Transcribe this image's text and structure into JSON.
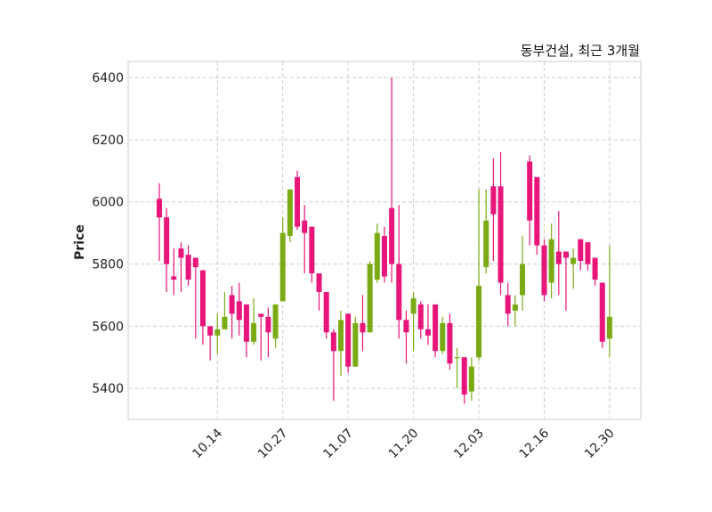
{
  "chart_data": {
    "type": "candlestick",
    "title": "동부건설, 최근 3개월",
    "ylabel": "Price",
    "xlabel": "",
    "ylim": [
      5300,
      6452
    ],
    "yticks": [
      5400,
      5600,
      5800,
      6000,
      6200,
      6400
    ],
    "grid": true,
    "colors": {
      "up": "#7bab14",
      "down": "#e8157a",
      "grid": "#cccccc",
      "frame": "#dddddd"
    },
    "xtick_labels": [
      {
        "index": 8,
        "label": "10.14"
      },
      {
        "index": 17,
        "label": "10.27"
      },
      {
        "index": 26,
        "label": "11.07"
      },
      {
        "index": 35,
        "label": "11.20"
      },
      {
        "index": 44,
        "label": "12.03"
      },
      {
        "index": 53,
        "label": "12.16"
      },
      {
        "index": 62,
        "label": "12.30"
      }
    ],
    "ohlc": [
      [
        6010,
        6060,
        5810,
        5950
      ],
      [
        5950,
        5980,
        5710,
        5800
      ],
      [
        5760,
        5850,
        5700,
        5750
      ],
      [
        5850,
        5870,
        5710,
        5820
      ],
      [
        5830,
        5860,
        5730,
        5750
      ],
      [
        5820,
        5820,
        5560,
        5790
      ],
      [
        5780,
        5780,
        5540,
        5600
      ],
      [
        5600,
        5600,
        5490,
        5570
      ],
      [
        5570,
        5640,
        5510,
        5590
      ],
      [
        5590,
        5710,
        5590,
        5630
      ],
      [
        5700,
        5730,
        5560,
        5640
      ],
      [
        5680,
        5740,
        5570,
        5620
      ],
      [
        5670,
        5670,
        5500,
        5550
      ],
      [
        5550,
        5690,
        5540,
        5610
      ],
      [
        5640,
        5640,
        5490,
        5630
      ],
      [
        5630,
        5660,
        5500,
        5580
      ],
      [
        5560,
        5670,
        5530,
        5670
      ],
      [
        5680,
        5950,
        5680,
        5900
      ],
      [
        5890,
        6040,
        5870,
        6040
      ],
      [
        6080,
        6100,
        5910,
        5920
      ],
      [
        5940,
        5990,
        5770,
        5900
      ],
      [
        5920,
        5920,
        5740,
        5770
      ],
      [
        5770,
        5770,
        5650,
        5710
      ],
      [
        5710,
        5710,
        5560,
        5580
      ],
      [
        5580,
        5590,
        5360,
        5520
      ],
      [
        5520,
        5650,
        5440,
        5620
      ],
      [
        5640,
        5640,
        5450,
        5470
      ],
      [
        5470,
        5630,
        5470,
        5610
      ],
      [
        5610,
        5700,
        5520,
        5580
      ],
      [
        5580,
        5810,
        5580,
        5800
      ],
      [
        5750,
        5930,
        5740,
        5900
      ],
      [
        5890,
        5920,
        5740,
        5760
      ],
      [
        5980,
        6400,
        5740,
        5800
      ],
      [
        5800,
        5990,
        5560,
        5620
      ],
      [
        5620,
        5650,
        5480,
        5580
      ],
      [
        5640,
        5710,
        5520,
        5690
      ],
      [
        5670,
        5680,
        5560,
        5590
      ],
      [
        5590,
        5670,
        5540,
        5570
      ],
      [
        5670,
        5670,
        5500,
        5520
      ],
      [
        5520,
        5630,
        5510,
        5610
      ],
      [
        5610,
        5640,
        5460,
        5480
      ],
      [
        5500,
        5530,
        5400,
        5500
      ],
      [
        5500,
        5500,
        5350,
        5380
      ],
      [
        5390,
        5500,
        5360,
        5470
      ],
      [
        5500,
        6040,
        5490,
        5730
      ],
      [
        5790,
        6040,
        5770,
        5940
      ],
      [
        6050,
        6140,
        5810,
        5960
      ],
      [
        6050,
        6160,
        5700,
        5740
      ],
      [
        5700,
        5740,
        5600,
        5640
      ],
      [
        5650,
        5700,
        5600,
        5670
      ],
      [
        5700,
        5890,
        5650,
        5800
      ],
      [
        6130,
        6150,
        5860,
        5940
      ],
      [
        6080,
        6080,
        5830,
        5860
      ],
      [
        5860,
        5880,
        5680,
        5700
      ],
      [
        5740,
        5930,
        5690,
        5880
      ],
      [
        5840,
        5970,
        5700,
        5800
      ],
      [
        5840,
        5840,
        5650,
        5820
      ],
      [
        5800,
        5850,
        5720,
        5820
      ],
      [
        5880,
        5880,
        5780,
        5810
      ],
      [
        5870,
        5870,
        5780,
        5800
      ],
      [
        5820,
        5820,
        5730,
        5750
      ],
      [
        5740,
        5740,
        5530,
        5550
      ],
      [
        5560,
        5860,
        5500,
        5630
      ]
    ]
  }
}
